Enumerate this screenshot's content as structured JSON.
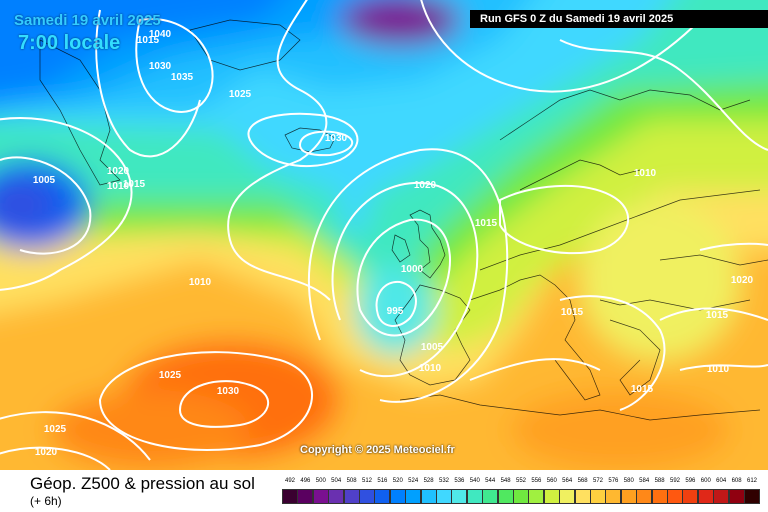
{
  "header": {
    "date": "Samedi 19 avril 2025",
    "local_time": "7:00 locale",
    "run_banner": "Run GFS 0 Z du Samedi 19 avril 2025"
  },
  "copyright": "Copyright © 2025 Meteociel.fr",
  "footer": {
    "title": "Géop. Z500 & pression au sol",
    "subtitle": "(+ 6h)"
  },
  "isobar_labels": [
    "1040",
    "1030",
    "1035",
    "1015",
    "1025",
    "1030",
    "1005",
    "1020",
    "1015",
    "1010",
    "1020",
    "1015",
    "1010",
    "1000",
    "995",
    "1005",
    "1010",
    "1015",
    "1020",
    "1015",
    "1010",
    "1025",
    "1030",
    "1015",
    "1025",
    "1020"
  ],
  "legend": {
    "values": [
      "492",
      "496",
      "500",
      "504",
      "508",
      "512",
      "516",
      "520",
      "524",
      "528",
      "532",
      "536",
      "540",
      "544",
      "548",
      "552",
      "556",
      "560",
      "564",
      "568",
      "572",
      "576",
      "580",
      "584",
      "588",
      "592",
      "596",
      "600",
      "604",
      "608",
      "612"
    ],
    "colors": [
      "#3a0030",
      "#5a0060",
      "#7a1090",
      "#6a30b0",
      "#5040c8",
      "#3050e0",
      "#1060f0",
      "#0080ff",
      "#00a0ff",
      "#20c0ff",
      "#40d8ff",
      "#50e8e8",
      "#40e8c0",
      "#40e890",
      "#50e860",
      "#70e840",
      "#a0f040",
      "#d0f040",
      "#f0f060",
      "#ffe060",
      "#ffd040",
      "#ffb830",
      "#ffa020",
      "#ff8818",
      "#ff7010",
      "#ff5810",
      "#f04010",
      "#e02818",
      "#c01818",
      "#900010",
      "#300000"
    ]
  }
}
